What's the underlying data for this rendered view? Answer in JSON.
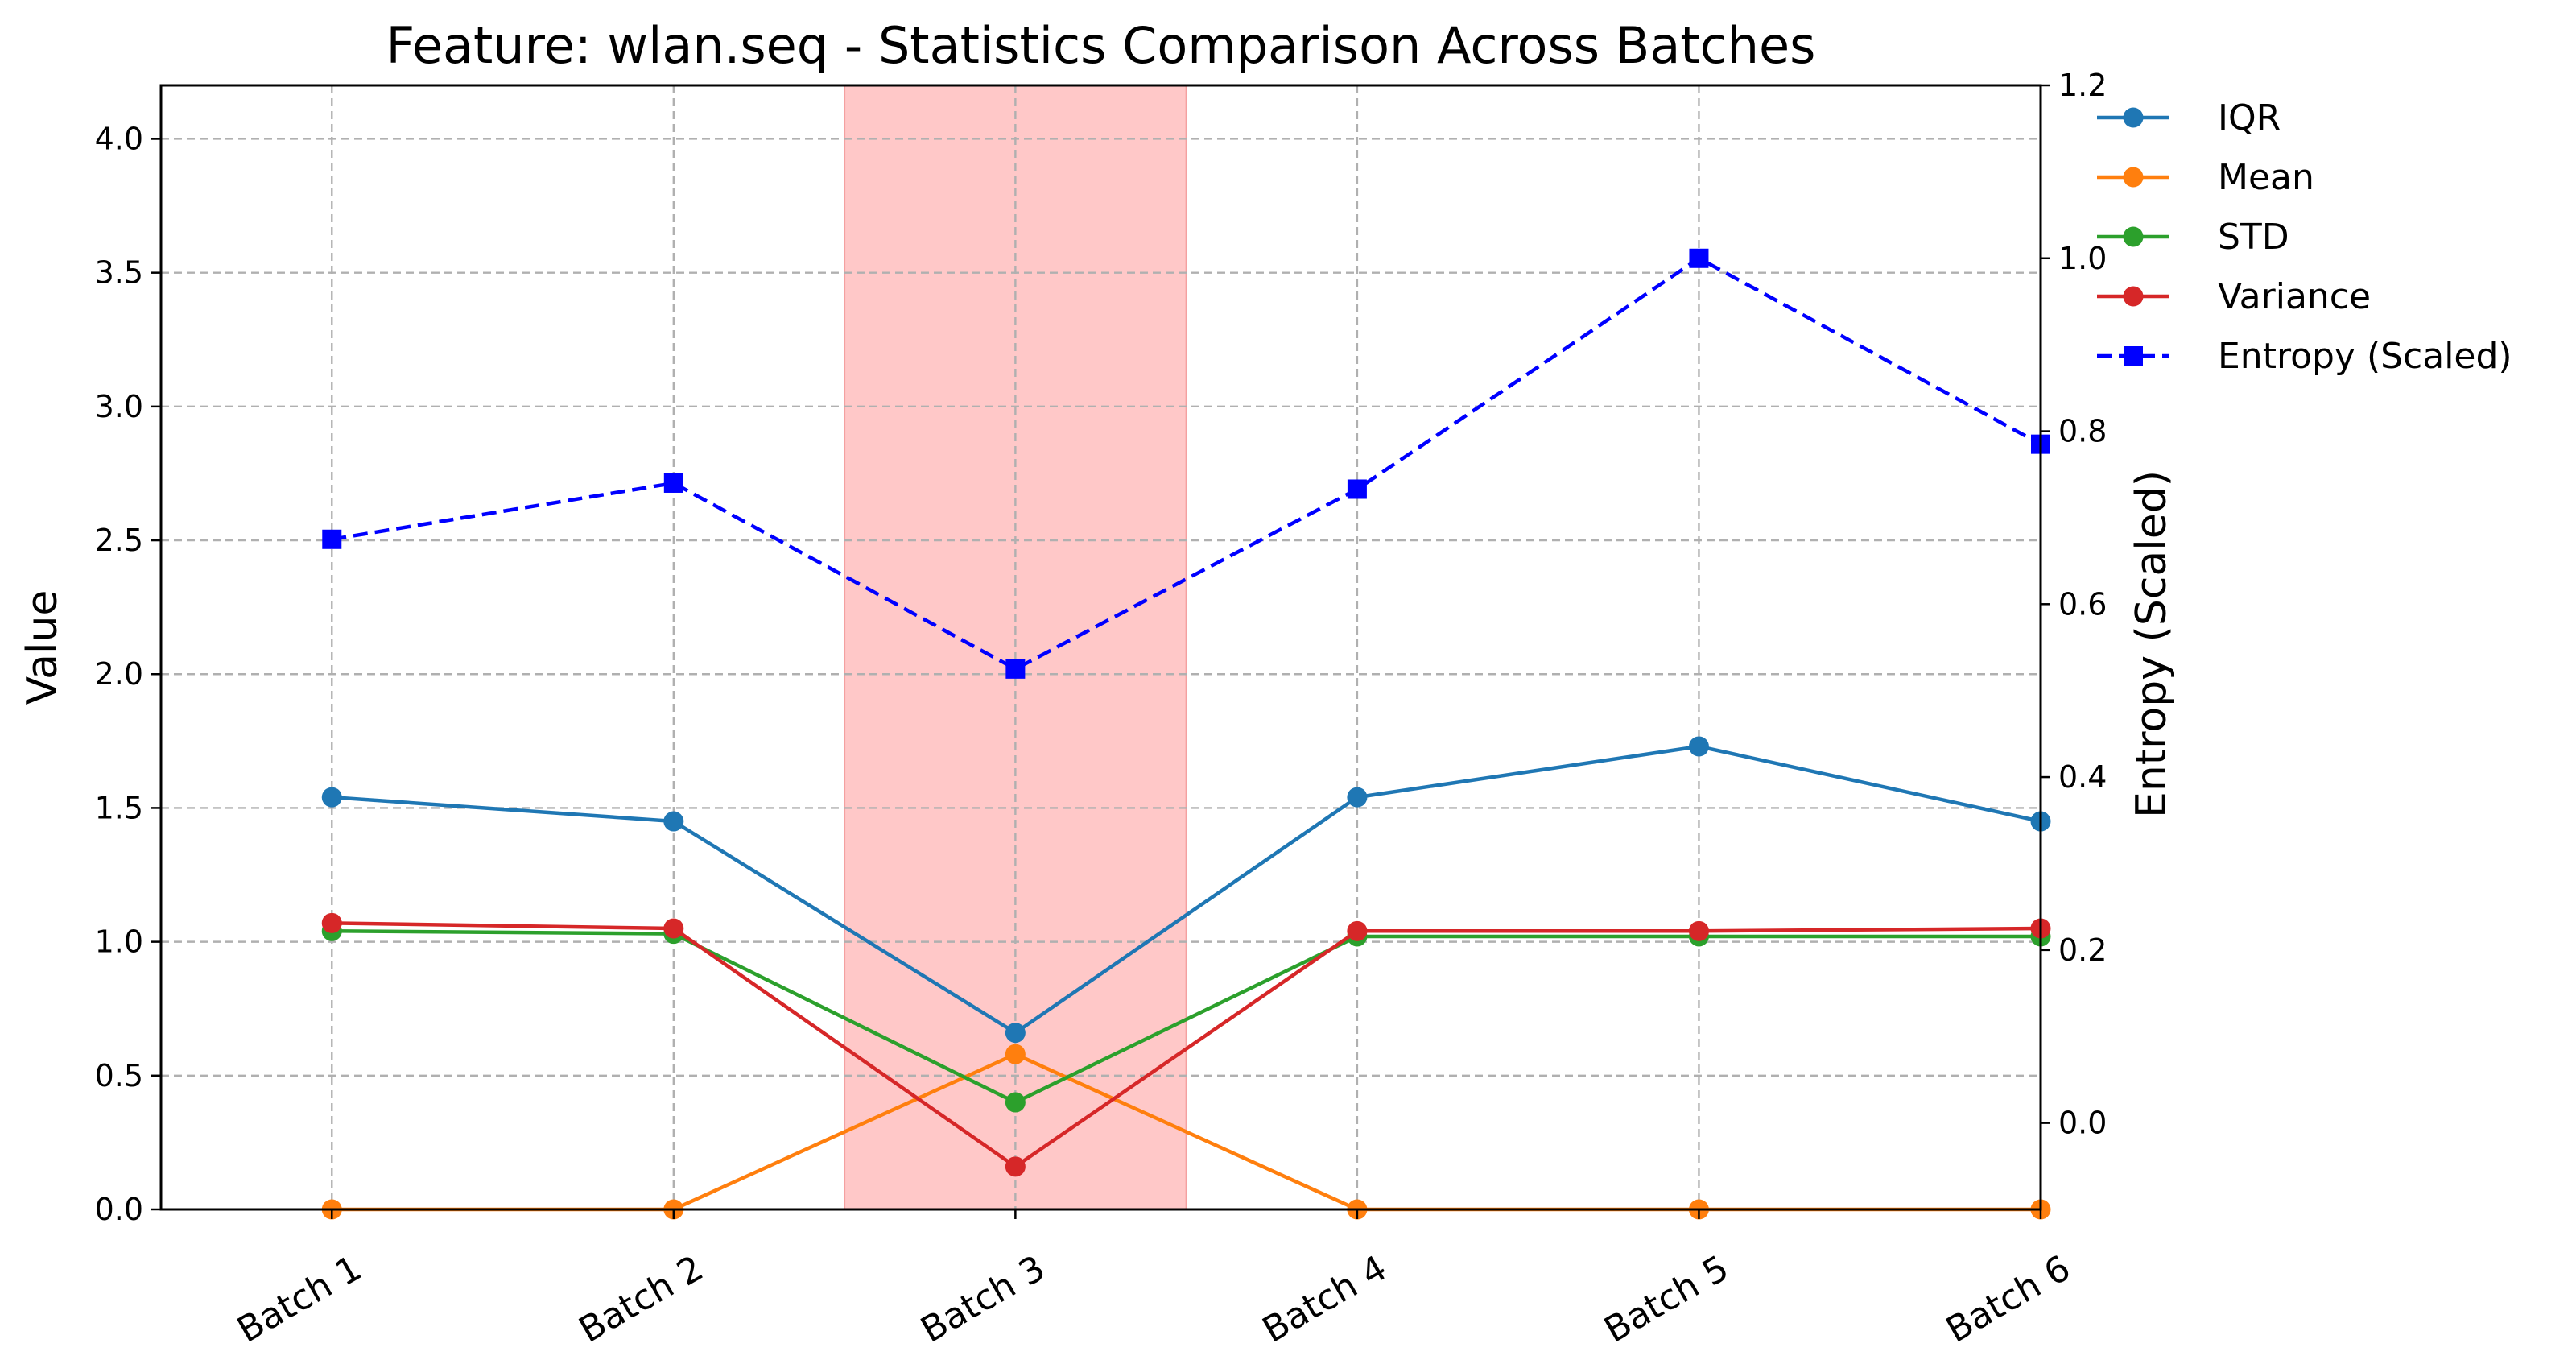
{
  "chart_data": {
    "type": "line",
    "title": "Feature: wlan.seq - Statistics Comparison Across Batches",
    "ylabel": "Value",
    "y2label": "Entropy (Scaled)",
    "categories": [
      "Batch 1",
      "Batch 2",
      "Batch 3",
      "Batch 4",
      "Batch 5",
      "Batch 6"
    ],
    "ylim": [
      0,
      4.2
    ],
    "yticks": [
      "0.0",
      "0.5",
      "1.0",
      "1.5",
      "2.0",
      "2.5",
      "3.0",
      "3.5",
      "4.0"
    ],
    "y2lim": [
      -0.1,
      1.2
    ],
    "y2ticks": [
      "0.0",
      "0.2",
      "0.4",
      "0.6",
      "0.8",
      "1.0",
      "1.2"
    ],
    "highlight_category": "Batch 3",
    "grid": true,
    "legend_position": "outside-top-right",
    "series": [
      {
        "name": "IQR",
        "axis": "left",
        "marker": "circle",
        "dash": "solid",
        "color": "#1f77b4",
        "values": [
          1.54,
          1.45,
          0.66,
          1.54,
          1.73,
          1.45
        ]
      },
      {
        "name": "Mean",
        "axis": "left",
        "marker": "circle",
        "dash": "solid",
        "color": "#ff7f0e",
        "values": [
          0.0,
          0.0,
          0.58,
          0.0,
          0.0,
          0.0
        ]
      },
      {
        "name": "STD",
        "axis": "left",
        "marker": "circle",
        "dash": "solid",
        "color": "#2ca02c",
        "values": [
          1.04,
          1.03,
          0.4,
          1.02,
          1.02,
          1.02
        ]
      },
      {
        "name": "Variance",
        "axis": "left",
        "marker": "circle",
        "dash": "solid",
        "color": "#d62728",
        "values": [
          1.07,
          1.05,
          0.16,
          1.04,
          1.04,
          1.05
        ]
      },
      {
        "name": "Entropy (Scaled)",
        "axis": "right",
        "marker": "square",
        "dash": "dashed",
        "color": "#0000ff",
        "values": [
          0.675,
          0.74,
          0.525,
          0.733,
          1.0,
          0.785
        ]
      }
    ],
    "colors": {
      "highlight": "#ffc8c8",
      "highlight_edge": "#f4a0a0",
      "y2label": "#0000ff"
    }
  }
}
